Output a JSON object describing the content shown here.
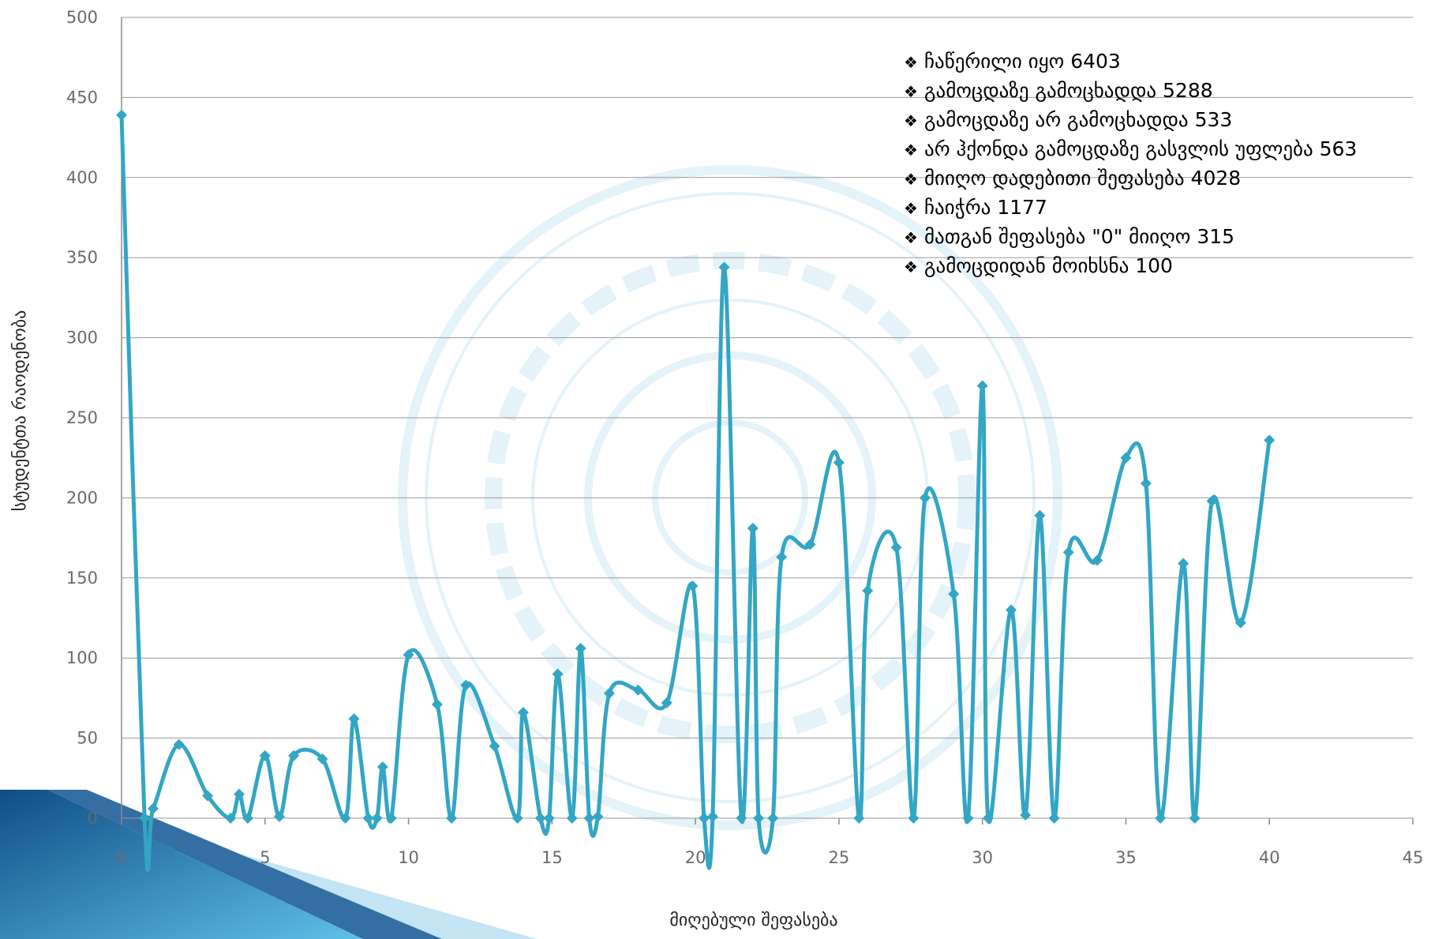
{
  "chart_data": {
    "type": "line",
    "xlabel": "მიღებული  შეფასება",
    "ylabel": "სტუდენტთა  რაოდენობა",
    "xlim": [
      0,
      45
    ],
    "ylim": [
      0,
      500
    ],
    "x_ticks": [
      "0",
      "5",
      "10",
      "15",
      "20",
      "25",
      "30",
      "35",
      "40",
      "45"
    ],
    "y_ticks": [
      "0",
      "50",
      "100",
      "150",
      "200",
      "250",
      "300",
      "350",
      "400",
      "450",
      "500"
    ],
    "grid": true,
    "line_color": "#33A6C4",
    "series": [
      {
        "x": [
          0,
          0.8,
          1.1,
          2,
          3,
          3.8,
          4.1,
          4.4,
          5,
          5.5,
          6,
          7,
          7.8,
          8.1,
          8.6,
          8.9,
          9.1,
          9.4,
          10,
          11,
          11.5,
          12,
          13,
          13.8,
          14,
          14.6,
          14.9,
          15.2,
          15.7,
          16,
          16.3,
          16.6,
          17,
          18,
          19,
          19.9,
          20.3,
          20.6,
          21,
          21.6,
          22,
          22.2,
          22.7,
          23,
          24,
          25,
          25.7,
          26,
          27,
          27.6,
          28,
          29,
          29.5,
          30,
          30.2,
          31,
          31.5,
          32,
          32.5,
          33,
          34,
          35,
          35.7,
          36.2,
          37,
          37.4,
          38,
          39,
          40
        ],
        "y": [
          439,
          0,
          6,
          46,
          14,
          0,
          15,
          0,
          39,
          1,
          39,
          37,
          0,
          62,
          0,
          0,
          32,
          0,
          102,
          71,
          0,
          83,
          45,
          0,
          66,
          0,
          0,
          90,
          0,
          106,
          0,
          1,
          78,
          80,
          72,
          145,
          0,
          1,
          344,
          0,
          181,
          0,
          0,
          163,
          171,
          222,
          0,
          142,
          169,
          0,
          200,
          140,
          0,
          270,
          0,
          130,
          2,
          189,
          0,
          166,
          161,
          225,
          209,
          0,
          159,
          0,
          198,
          122,
          236
        ]
      }
    ]
  },
  "legend": {
    "items": [
      "ჩაწერილი იყო 6403",
      "გამოცდაზე გამოცხადდა 5288",
      "გამოცდაზე არ გამოცხადდა 533",
      "არ ჰქონდა გამოცდაზე გასვლის უფლება 563",
      "მიიღო დადებითი შეფასება 4028",
      "ჩაიჭრა 1177",
      "მათგან შეფასება \"0\" მიიღო 315",
      "გამოცდიდან მოიხსნა 100"
    ],
    "bullet": "❖"
  }
}
